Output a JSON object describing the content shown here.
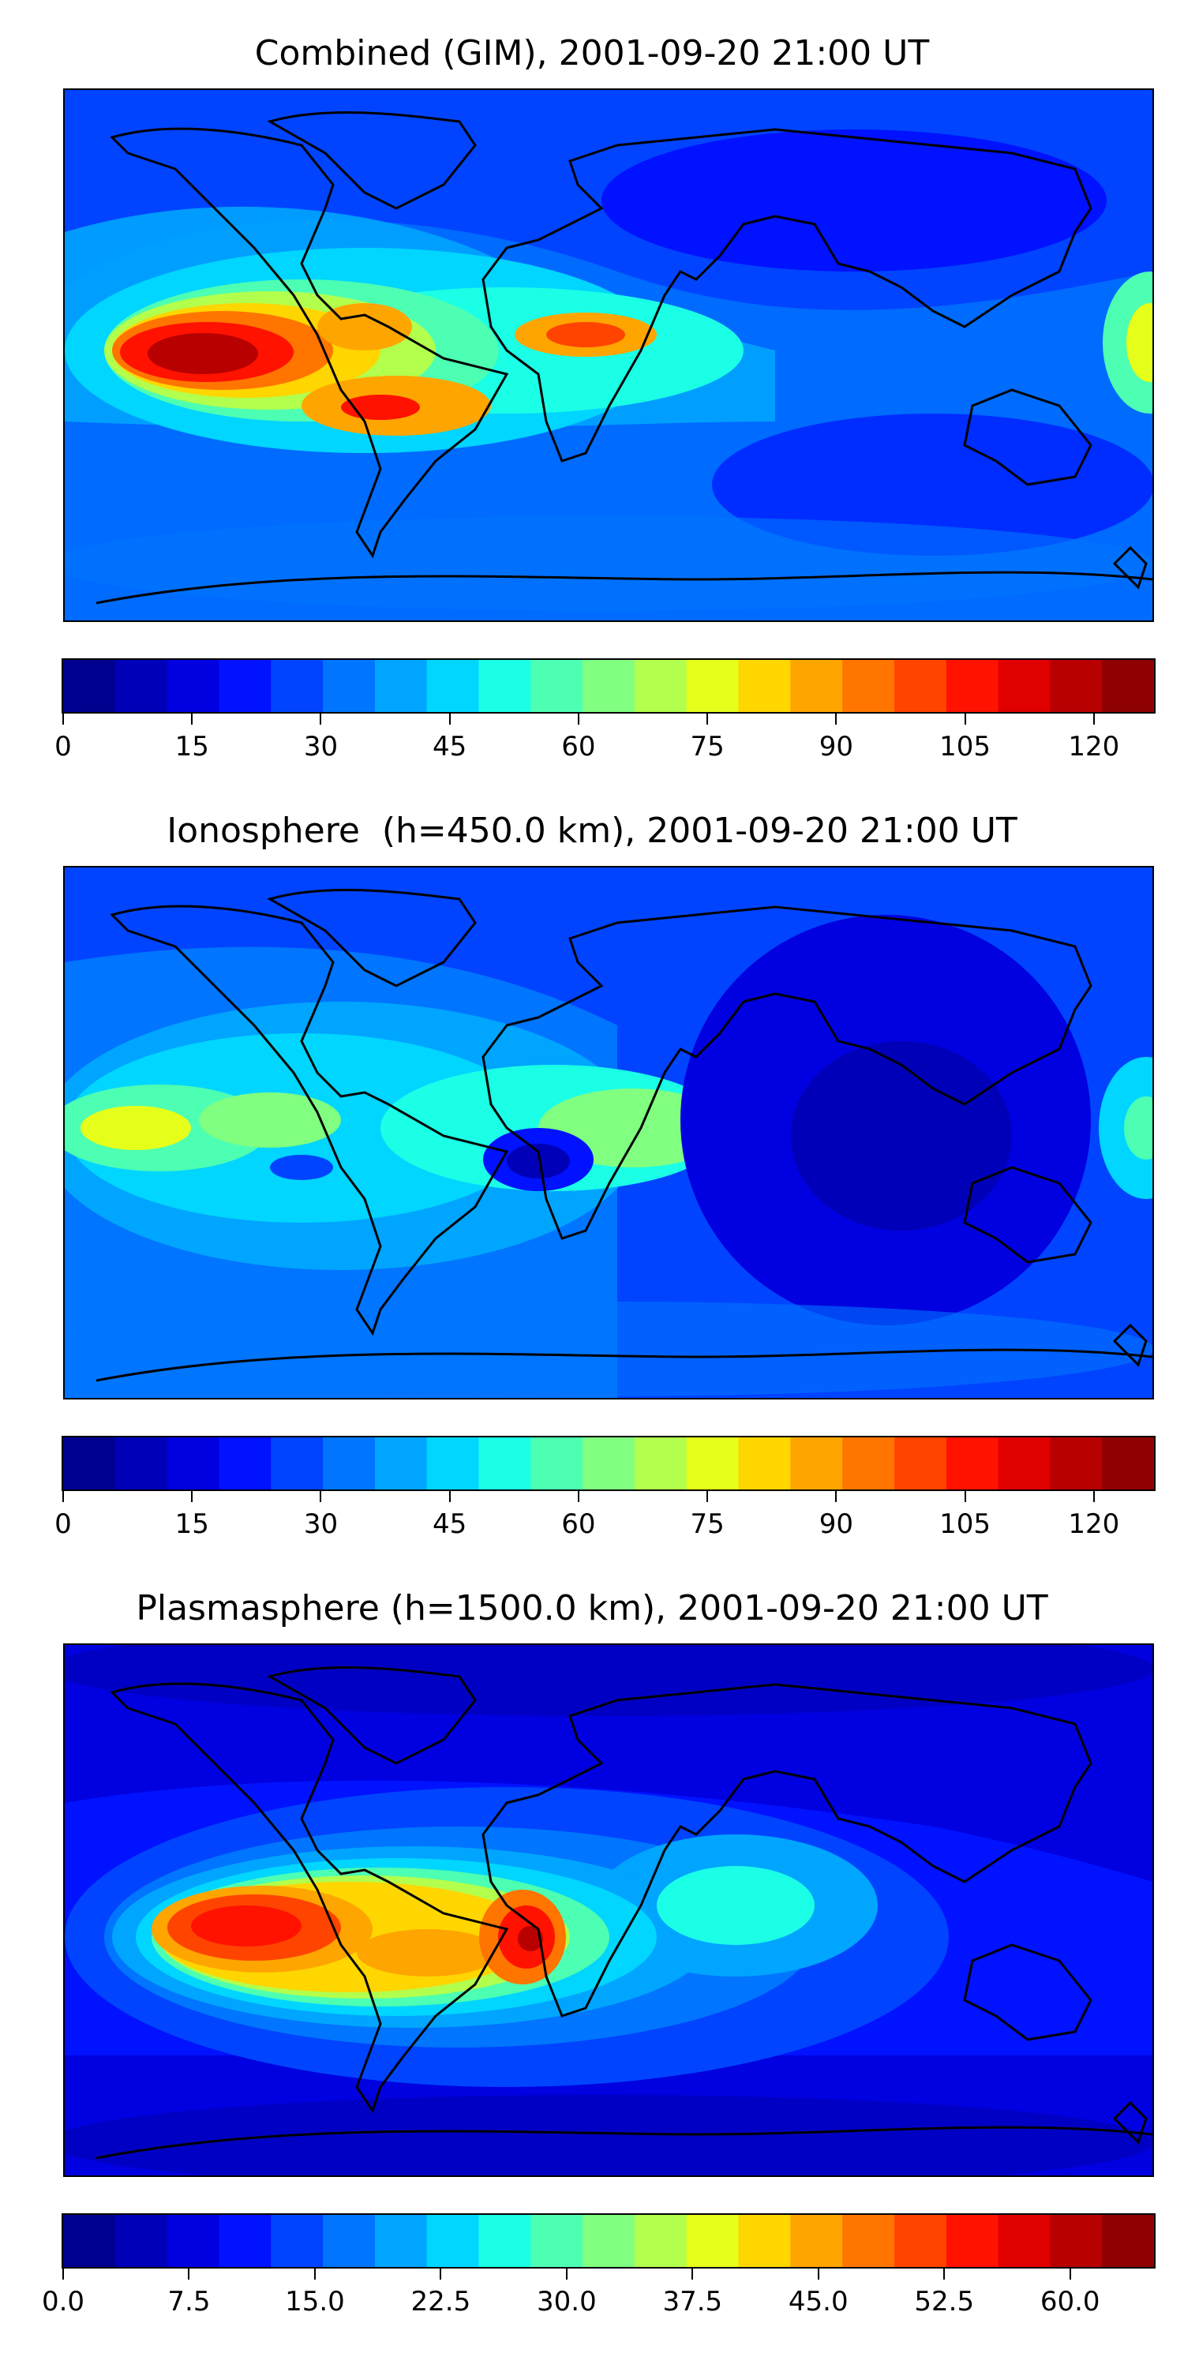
{
  "colormap": [
    "#00008f",
    "#0000b8",
    "#0000e0",
    "#0012ff",
    "#0044ff",
    "#0075ff",
    "#00a5ff",
    "#00d6ff",
    "#1affe6",
    "#4dffb2",
    "#80ff80",
    "#b2ff4d",
    "#e5ff1a",
    "#ffd600",
    "#ffa500",
    "#ff7500",
    "#ff4400",
    "#ff1200",
    "#e00000",
    "#b80000",
    "#8f0000"
  ],
  "coastline_color": "#000000",
  "panels": [
    {
      "title": "Combined (GIM), 2001-09-20 21:00 UT",
      "colorbar": {
        "min": 0,
        "max": 127,
        "levels": 21,
        "ticks": [
          0,
          15,
          30,
          45,
          60,
          75,
          90,
          105,
          120
        ],
        "tick_labels": [
          "0",
          "15",
          "30",
          "45",
          "60",
          "75",
          "90",
          "105",
          "120"
        ]
      }
    },
    {
      "title": "Ionosphere  (h=450.0 km), 2001-09-20 21:00 UT",
      "colorbar": {
        "min": 0,
        "max": 127,
        "levels": 21,
        "ticks": [
          0,
          15,
          30,
          45,
          60,
          75,
          90,
          105,
          120
        ],
        "tick_labels": [
          "0",
          "15",
          "30",
          "45",
          "60",
          "75",
          "90",
          "105",
          "120"
        ]
      }
    },
    {
      "title": "Plasmasphere (h=1500.0 km), 2001-09-20 21:00 UT",
      "colorbar": {
        "min": 0,
        "max": 65,
        "levels": 21,
        "ticks": [
          0,
          7.5,
          15,
          22.5,
          30,
          37.5,
          45,
          52.5,
          60
        ],
        "tick_labels": [
          "0.0",
          "7.5",
          "15.0",
          "22.5",
          "30.0",
          "37.5",
          "45.0",
          "52.5",
          "60.0"
        ]
      }
    }
  ]
}
